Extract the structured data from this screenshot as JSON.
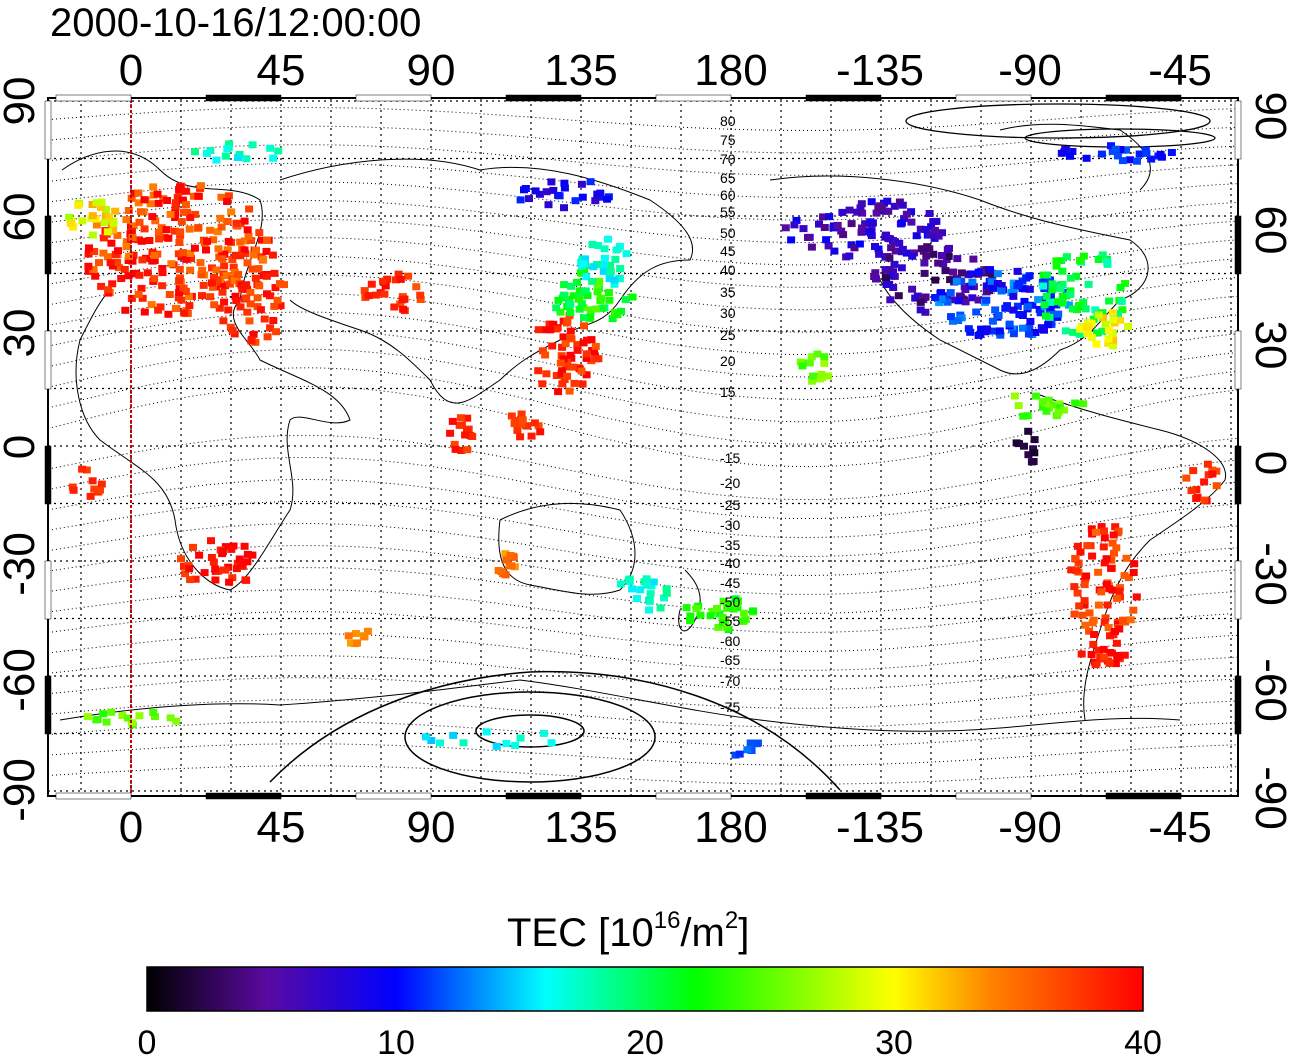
{
  "timestamp": "2000-10-16/12:00:00",
  "axes": {
    "x_tick_labels": [
      "0",
      "45",
      "90",
      "135",
      "180",
      "-135",
      "-90",
      "-45"
    ],
    "y_tick_labels": [
      "90",
      "60",
      "30",
      "0",
      "-30",
      "-60",
      "-90"
    ]
  },
  "contour_labels": [
    "80",
    "75",
    "70",
    "65",
    "60",
    "55",
    "50",
    "45",
    "40",
    "35",
    "30",
    "25",
    "20",
    "15",
    "-15",
    "-20",
    "-25",
    "-30",
    "-35",
    "-40",
    "-45",
    "-50",
    "-55",
    "-60",
    "-65",
    "-70",
    "-75"
  ],
  "colorbar": {
    "label_main": "TEC  [10",
    "label_sup1": "16",
    "label_mid": "/m",
    "label_sup2": "2",
    "label_end": "]",
    "tick_labels": [
      "0",
      "10",
      "20",
      "30",
      "40"
    ],
    "min": 0,
    "max": 40,
    "stops": [
      "#000000",
      "#5a0aa0",
      "#0000ff",
      "#00ffff",
      "#00ff00",
      "#ffff00",
      "#ff8000",
      "#ff0000"
    ]
  },
  "reference_line_color": "#cc0000"
}
